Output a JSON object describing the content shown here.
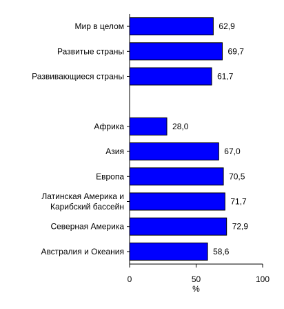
{
  "chart_data": {
    "type": "bar",
    "orientation": "horizontal",
    "categories": [
      [
        "Мир в целом"
      ],
      [
        "Развитые страны"
      ],
      [
        "Развивающиеся страны"
      ],
      [],
      [
        "Африка"
      ],
      [
        "Азия"
      ],
      [
        "Европа"
      ],
      [
        "Латинская Америка и",
        "Карибский бассейн"
      ],
      [
        "Северная Америка"
      ],
      [
        "Австралия и Океания"
      ]
    ],
    "values": [
      62.9,
      69.7,
      61.7,
      null,
      28.0,
      67.0,
      70.5,
      71.7,
      72.9,
      58.6
    ],
    "value_labels": [
      "62,9",
      "69,7",
      "61,7",
      "",
      "28,0",
      "67,0",
      "70,5",
      "71,7",
      "72,9",
      "58,6"
    ],
    "xlim": [
      0,
      100
    ],
    "xticks": [
      0,
      50,
      100
    ],
    "xlabel": "%",
    "grid": false,
    "legend": "none",
    "bar_color": "#0000ff",
    "bar_edge_color": "#000000"
  }
}
